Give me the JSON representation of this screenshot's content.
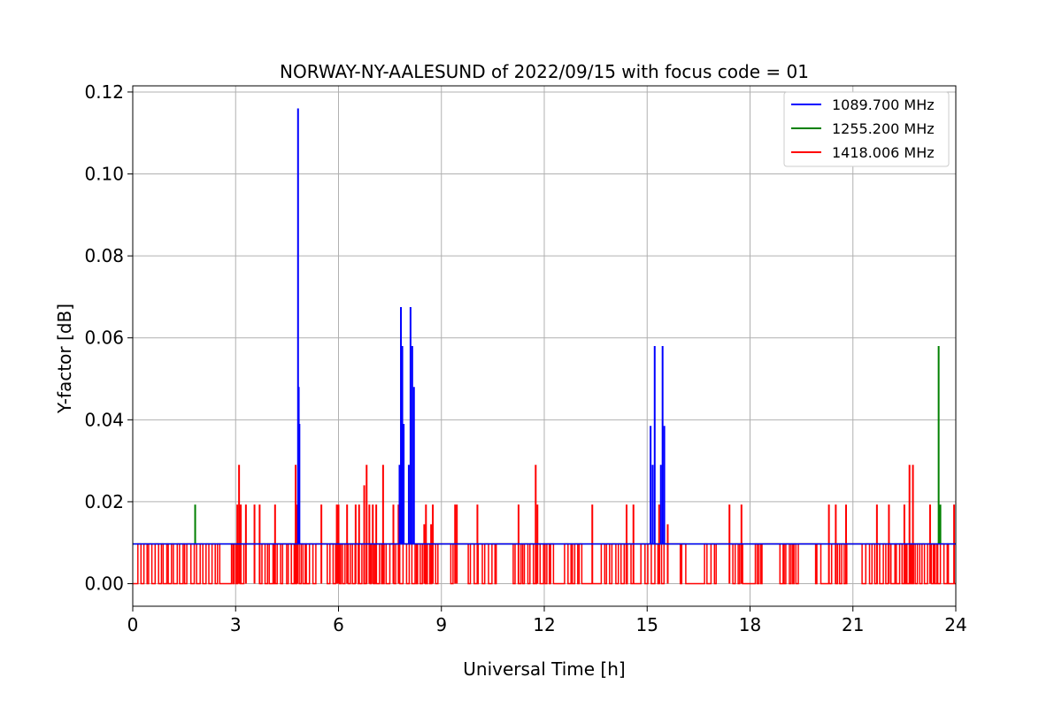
{
  "chart_data": {
    "type": "line",
    "title": "NORWAY-NY-AALESUND of 2022/09/15 with focus code = 01",
    "xlabel": "Universal Time [h]",
    "ylabel": "Y-factor [dB]",
    "xlim": [
      0,
      24
    ],
    "ylim": [
      -0.0055,
      0.1215
    ],
    "xticks": [
      0,
      3,
      6,
      9,
      12,
      15,
      18,
      21,
      24
    ],
    "xtick_labels": [
      "0",
      "3",
      "6",
      "9",
      "12",
      "15",
      "18",
      "21",
      "24"
    ],
    "yticks": [
      0.0,
      0.02,
      0.04,
      0.06,
      0.08,
      0.1,
      0.12
    ],
    "ytick_labels": [
      "0.00",
      "0.02",
      "0.04",
      "0.06",
      "0.08",
      "0.10",
      "0.12"
    ],
    "grid": true,
    "legend_position": "top-right",
    "baseline": 0.0097,
    "series": [
      {
        "name": "1089.700 MHz",
        "color": "#0000ff",
        "spikes": [
          [
            4.82,
            0.116
          ],
          [
            4.84,
            0.048
          ],
          [
            4.86,
            0.039
          ],
          [
            7.78,
            0.029
          ],
          [
            7.82,
            0.0675
          ],
          [
            7.86,
            0.058
          ],
          [
            7.9,
            0.039
          ],
          [
            8.05,
            0.029
          ],
          [
            8.1,
            0.0675
          ],
          [
            8.15,
            0.058
          ],
          [
            8.2,
            0.048
          ],
          [
            15.1,
            0.0385
          ],
          [
            15.16,
            0.029
          ],
          [
            15.22,
            0.058
          ],
          [
            15.4,
            0.029
          ],
          [
            15.45,
            0.058
          ],
          [
            15.5,
            0.0385
          ]
        ]
      },
      {
        "name": "1255.200 MHz",
        "color": "#008000",
        "spikes": [
          [
            1.82,
            0.0193
          ],
          [
            23.5,
            0.058
          ],
          [
            23.55,
            0.0193
          ]
        ]
      },
      {
        "name": "1418.006 MHz",
        "color": "#ff0000",
        "spikes": [
          [
            3.05,
            0.0193
          ],
          [
            3.1,
            0.029
          ],
          [
            3.15,
            0.0193
          ],
          [
            3.3,
            0.0193
          ],
          [
            3.55,
            0.0193
          ],
          [
            3.7,
            0.0193
          ],
          [
            4.15,
            0.0193
          ],
          [
            4.75,
            0.029
          ],
          [
            4.8,
            0.0193
          ],
          [
            5.5,
            0.0193
          ],
          [
            5.95,
            0.0193
          ],
          [
            6.0,
            0.0193
          ],
          [
            6.25,
            0.0193
          ],
          [
            6.5,
            0.0193
          ],
          [
            6.6,
            0.0193
          ],
          [
            6.75,
            0.024
          ],
          [
            6.82,
            0.029
          ],
          [
            6.9,
            0.0193
          ],
          [
            7.0,
            0.0193
          ],
          [
            7.1,
            0.0193
          ],
          [
            7.3,
            0.029
          ],
          [
            7.6,
            0.0193
          ],
          [
            7.75,
            0.0193
          ],
          [
            8.5,
            0.0145
          ],
          [
            8.55,
            0.0193
          ],
          [
            8.7,
            0.0145
          ],
          [
            8.75,
            0.0193
          ],
          [
            9.4,
            0.0193
          ],
          [
            9.45,
            0.0193
          ],
          [
            10.05,
            0.0193
          ],
          [
            11.25,
            0.0193
          ],
          [
            11.75,
            0.029
          ],
          [
            11.8,
            0.0193
          ],
          [
            13.4,
            0.0193
          ],
          [
            14.4,
            0.0193
          ],
          [
            14.6,
            0.0193
          ],
          [
            15.35,
            0.0193
          ],
          [
            15.6,
            0.0145
          ],
          [
            17.4,
            0.0193
          ],
          [
            17.75,
            0.0193
          ],
          [
            20.3,
            0.0193
          ],
          [
            20.5,
            0.0193
          ],
          [
            20.8,
            0.0193
          ],
          [
            21.7,
            0.0193
          ],
          [
            22.05,
            0.0193
          ],
          [
            22.5,
            0.0193
          ],
          [
            22.65,
            0.029
          ],
          [
            22.75,
            0.029
          ],
          [
            23.25,
            0.0193
          ],
          [
            23.95,
            0.0193
          ]
        ]
      }
    ]
  }
}
